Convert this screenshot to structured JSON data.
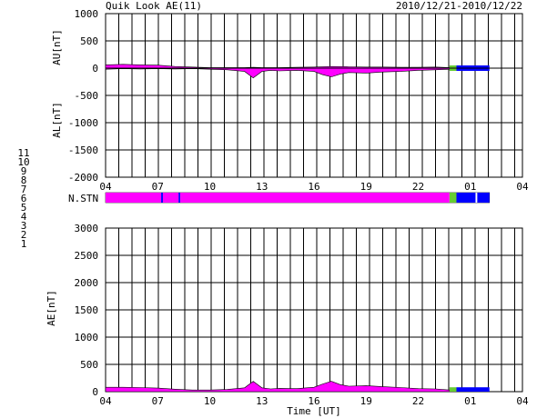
{
  "chart_data": {
    "type": "area",
    "title": "Quik Look AE(11)",
    "date_range": "2010/12/21-2010/12/22",
    "xlabel": "Time [UT]",
    "x_ticks": [
      "04",
      "07",
      "10",
      "13",
      "16",
      "19",
      "22",
      "01",
      "04"
    ],
    "x_range_hours": [
      4,
      28
    ],
    "station_legend": [
      {
        "label": "11",
        "color": "#00e0e0"
      },
      {
        "label": "10",
        "color": "#ff00ff"
      },
      {
        "label": "9",
        "color": "#0000ff"
      },
      {
        "label": "8",
        "color": "#ffff00"
      },
      {
        "label": "7",
        "color": "#66cc33"
      },
      {
        "label": "6",
        "color": "#ff0000"
      },
      {
        "label": "5",
        "color": "#cccccc"
      },
      {
        "label": "4",
        "color": "#999999"
      },
      {
        "label": "3",
        "color": "#009999"
      },
      {
        "label": "2",
        "color": "#cc0099"
      },
      {
        "label": "1",
        "color": "#0000cc"
      }
    ],
    "panels": [
      {
        "id": "au_al",
        "ylabel_top": "AU[nT]",
        "ylabel_bottom": "AL[nT]",
        "ylim": [
          -2000,
          1000
        ],
        "y_ticks": [
          "1000",
          "500",
          "0",
          "-500",
          "-1000",
          "-1500",
          "-2000"
        ],
        "au": {
          "x": [
            4.0,
            5.0,
            6.0,
            7.0,
            8.0,
            9.0,
            10.0,
            11.0,
            12.0,
            12.5,
            13.0,
            14.0,
            15.0,
            16.0,
            17.0,
            18.0,
            19.0,
            20.0,
            21.0,
            22.0,
            23.0,
            23.8
          ],
          "y": [
            60,
            70,
            60,
            55,
            30,
            20,
            10,
            10,
            10,
            15,
            10,
            10,
            15,
            20,
            30,
            25,
            20,
            20,
            15,
            15,
            20,
            10
          ]
        },
        "al": {
          "x": [
            4.0,
            5.0,
            6.0,
            7.0,
            8.0,
            9.0,
            10.0,
            11.0,
            12.0,
            12.5,
            13.0,
            13.5,
            14.0,
            15.0,
            16.0,
            16.5,
            17.0,
            17.5,
            18.0,
            19.0,
            20.0,
            21.0,
            22.0,
            23.0,
            23.8
          ],
          "y": [
            -20,
            -10,
            -15,
            -10,
            -15,
            -10,
            -20,
            -30,
            -60,
            -180,
            -60,
            -40,
            -50,
            -40,
            -60,
            -120,
            -160,
            -110,
            -80,
            -90,
            -70,
            -60,
            -40,
            -30,
            -20
          ]
        },
        "station_bars": [
          {
            "start": 23.8,
            "end": 24.2,
            "color": "#66cc33"
          },
          {
            "start": 24.2,
            "end": 26.1,
            "color": "#0000ff"
          }
        ]
      },
      {
        "id": "ae",
        "ylabel": "AE[nT]",
        "ylim": [
          0,
          3000
        ],
        "y_ticks": [
          "3000",
          "2500",
          "2000",
          "1500",
          "1000",
          "500",
          "0"
        ],
        "ae": {
          "x": [
            4.0,
            5.0,
            6.0,
            7.0,
            8.0,
            9.0,
            10.0,
            11.0,
            12.0,
            12.5,
            13.0,
            13.5,
            14.0,
            15.0,
            16.0,
            16.5,
            17.0,
            17.5,
            18.0,
            19.0,
            20.0,
            21.0,
            22.0,
            23.0,
            23.8
          ],
          "y": [
            80,
            80,
            75,
            65,
            45,
            30,
            30,
            40,
            70,
            190,
            70,
            50,
            60,
            55,
            80,
            140,
            190,
            130,
            100,
            110,
            90,
            75,
            55,
            50,
            30
          ]
        },
        "station_bars": [
          {
            "start": 23.8,
            "end": 24.2,
            "color": "#66cc33"
          },
          {
            "start": 24.2,
            "end": 26.1,
            "color": "#0000ff"
          }
        ]
      }
    ],
    "nstn": {
      "label": "N.STN",
      "segments": [
        {
          "start": 4.0,
          "end": 7.2,
          "color": "#ff00ff"
        },
        {
          "start": 7.2,
          "end": 7.3,
          "color": "#0000ff"
        },
        {
          "start": 7.3,
          "end": 8.2,
          "color": "#ff00ff"
        },
        {
          "start": 8.2,
          "end": 8.3,
          "color": "#0000ff"
        },
        {
          "start": 8.3,
          "end": 23.8,
          "color": "#ff00ff"
        },
        {
          "start": 23.8,
          "end": 24.2,
          "color": "#66cc33"
        },
        {
          "start": 24.2,
          "end": 25.3,
          "color": "#0000ff"
        },
        {
          "start": 25.3,
          "end": 25.4,
          "color": "#ffffff"
        },
        {
          "start": 25.4,
          "end": 26.1,
          "color": "#0000ff"
        }
      ]
    }
  }
}
